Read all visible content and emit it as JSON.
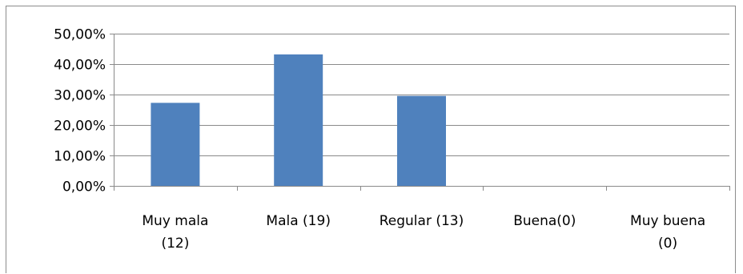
{
  "chart_data": {
    "type": "bar",
    "categories": [
      [
        "Muy mala",
        "(12)"
      ],
      [
        "Mala (19)"
      ],
      [
        "Regular (13)"
      ],
      [
        "Buena(0)"
      ],
      [
        "Muy buena",
        "(0)"
      ]
    ],
    "values": [
      27.27,
      43.18,
      29.55,
      0,
      0
    ],
    "ylim": [
      0,
      50
    ],
    "yticks": [
      "0,00%",
      "10,00%",
      "20,00%",
      "30,00%",
      "40,00%",
      "50,00%"
    ],
    "ytick_values": [
      0,
      10,
      20,
      30,
      40,
      50
    ],
    "grid": true,
    "colors": {
      "bar": "#4f81bd",
      "grid": "#8a8a8a",
      "frame": "#8c8c8c"
    }
  }
}
